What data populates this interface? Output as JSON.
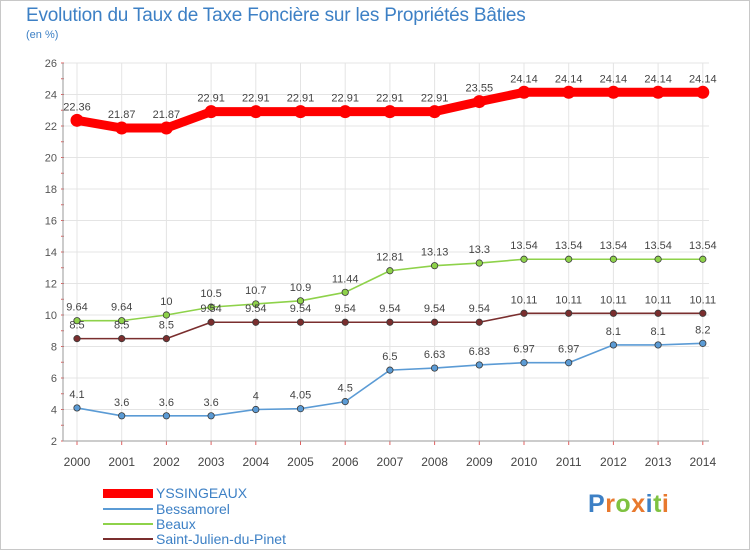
{
  "chart": {
    "title": "Evolution du Taux de Taxe Foncière sur les Propriétés Bâties",
    "unit": "(en %)"
  },
  "logo": {
    "text": "Proxiti",
    "colors": [
      "#3d80c5",
      "#e8792e",
      "#7fc241",
      "#e8792e",
      "#3d80c5",
      "#7fc241",
      "#e8792e"
    ]
  },
  "chart_data": {
    "type": "line",
    "title": "Evolution du Taux de Taxe Foncière sur les Propriétés Bâties",
    "xlabel": "",
    "ylabel": "(en %)",
    "ylim": [
      2,
      26
    ],
    "yticks": [
      2,
      4,
      6,
      8,
      10,
      12,
      14,
      16,
      18,
      20,
      22,
      24,
      26
    ],
    "grid": true,
    "legend_position": "bottom-left",
    "x": [
      "2000",
      "2001",
      "2002",
      "2003",
      "2004",
      "2005",
      "2006",
      "2007",
      "2008",
      "2009",
      "2010",
      "2011",
      "2012",
      "2013",
      "2014"
    ],
    "series": [
      {
        "name": "YSSINGEAUX",
        "color": "#ff0000",
        "values": [
          22.36,
          21.87,
          21.87,
          22.91,
          22.91,
          22.91,
          22.91,
          22.91,
          22.91,
          23.55,
          24.14,
          24.14,
          24.14,
          24.14,
          24.14
        ],
        "labels": [
          "22.36",
          "21.87",
          "21.87",
          "22.91",
          "22.91",
          "22.91",
          "22.91",
          "22.91",
          "22.91",
          "23.55",
          "24.14",
          "24.14",
          "24.14",
          "24.14",
          "24.14"
        ]
      },
      {
        "name": "Bessamorel",
        "color": "#5b9bd5",
        "values": [
          4.1,
          3.6,
          3.6,
          3.6,
          4,
          4.05,
          4.5,
          6.5,
          6.63,
          6.83,
          6.97,
          6.97,
          8.1,
          8.1,
          8.2
        ],
        "labels": [
          "4.1",
          "3.6",
          "3.6",
          "3.6",
          "4",
          "4.05",
          "4.5",
          "6.5",
          "6.63",
          "6.83",
          "6.97",
          "6.97",
          "8.1",
          "8.1",
          "8.2"
        ]
      },
      {
        "name": "Beaux",
        "color": "#8ed24a",
        "values": [
          9.64,
          9.64,
          10,
          10.5,
          10.7,
          10.9,
          11.44,
          12.81,
          13.13,
          13.3,
          13.54,
          13.54,
          13.54,
          13.54,
          13.54
        ],
        "labels": [
          "9.64",
          "9.64",
          "10",
          "10.5",
          "10.7",
          "10.9",
          "11.44",
          "12.81",
          "13.13",
          "13.3",
          "13.54",
          "13.54",
          "13.54",
          "13.54",
          "13.54"
        ]
      },
      {
        "name": "Saint-Julien-du-Pinet",
        "color": "#7a2e2e",
        "values": [
          8.5,
          8.5,
          8.5,
          9.54,
          9.54,
          9.54,
          9.54,
          9.54,
          9.54,
          9.54,
          10.11,
          10.11,
          10.11,
          10.11,
          10.11
        ],
        "labels": [
          "8.5",
          "8.5",
          "8.5",
          "9.54",
          "9.54",
          "9.54",
          "9.54",
          "9.54",
          "9.54",
          "9.54",
          "10.11",
          "10.11",
          "10.11",
          "10.11",
          "10.11"
        ]
      }
    ]
  }
}
